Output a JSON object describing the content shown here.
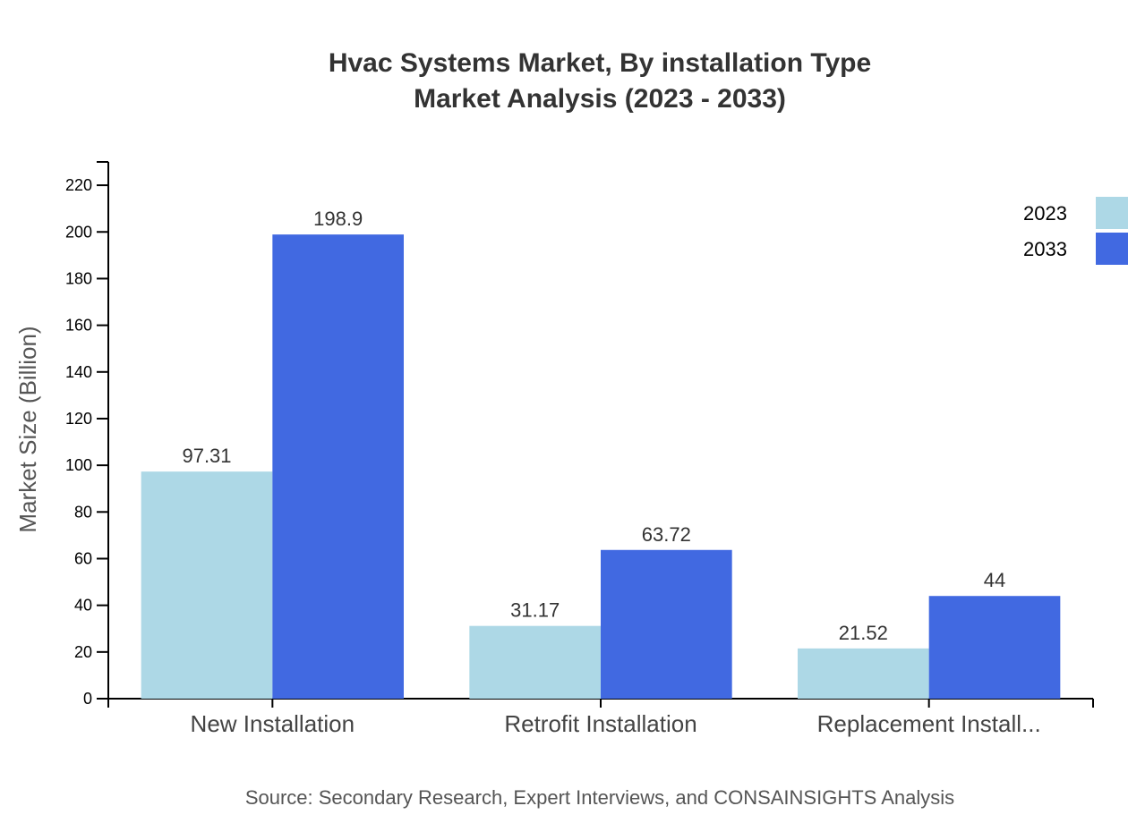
{
  "chart_data": {
    "type": "bar",
    "title_line1": "Hvac Systems Market, By installation Type",
    "title_line2": "Market Analysis (2023 - 2033)",
    "xlabel": "",
    "ylabel": "Market Size (Billion)",
    "ylim": [
      0,
      230
    ],
    "yticks": [
      0,
      20,
      40,
      60,
      80,
      100,
      120,
      140,
      160,
      180,
      200,
      220
    ],
    "categories": [
      "New Installation",
      "Retrofit Installation",
      "Replacement Install..."
    ],
    "series": [
      {
        "name": "2023",
        "color": "#add8e6",
        "values": [
          97.31,
          31.17,
          21.52
        ],
        "labels": [
          "97.31",
          "31.17",
          "21.52"
        ]
      },
      {
        "name": "2033",
        "color": "#4169e1",
        "values": [
          198.9,
          63.72,
          44
        ],
        "labels": [
          "198.9",
          "63.72",
          "44"
        ]
      }
    ],
    "legend_position": "top-right",
    "grid": false,
    "source": "Source: Secondary Research, Expert Interviews, and CONSAINSIGHTS Analysis"
  }
}
